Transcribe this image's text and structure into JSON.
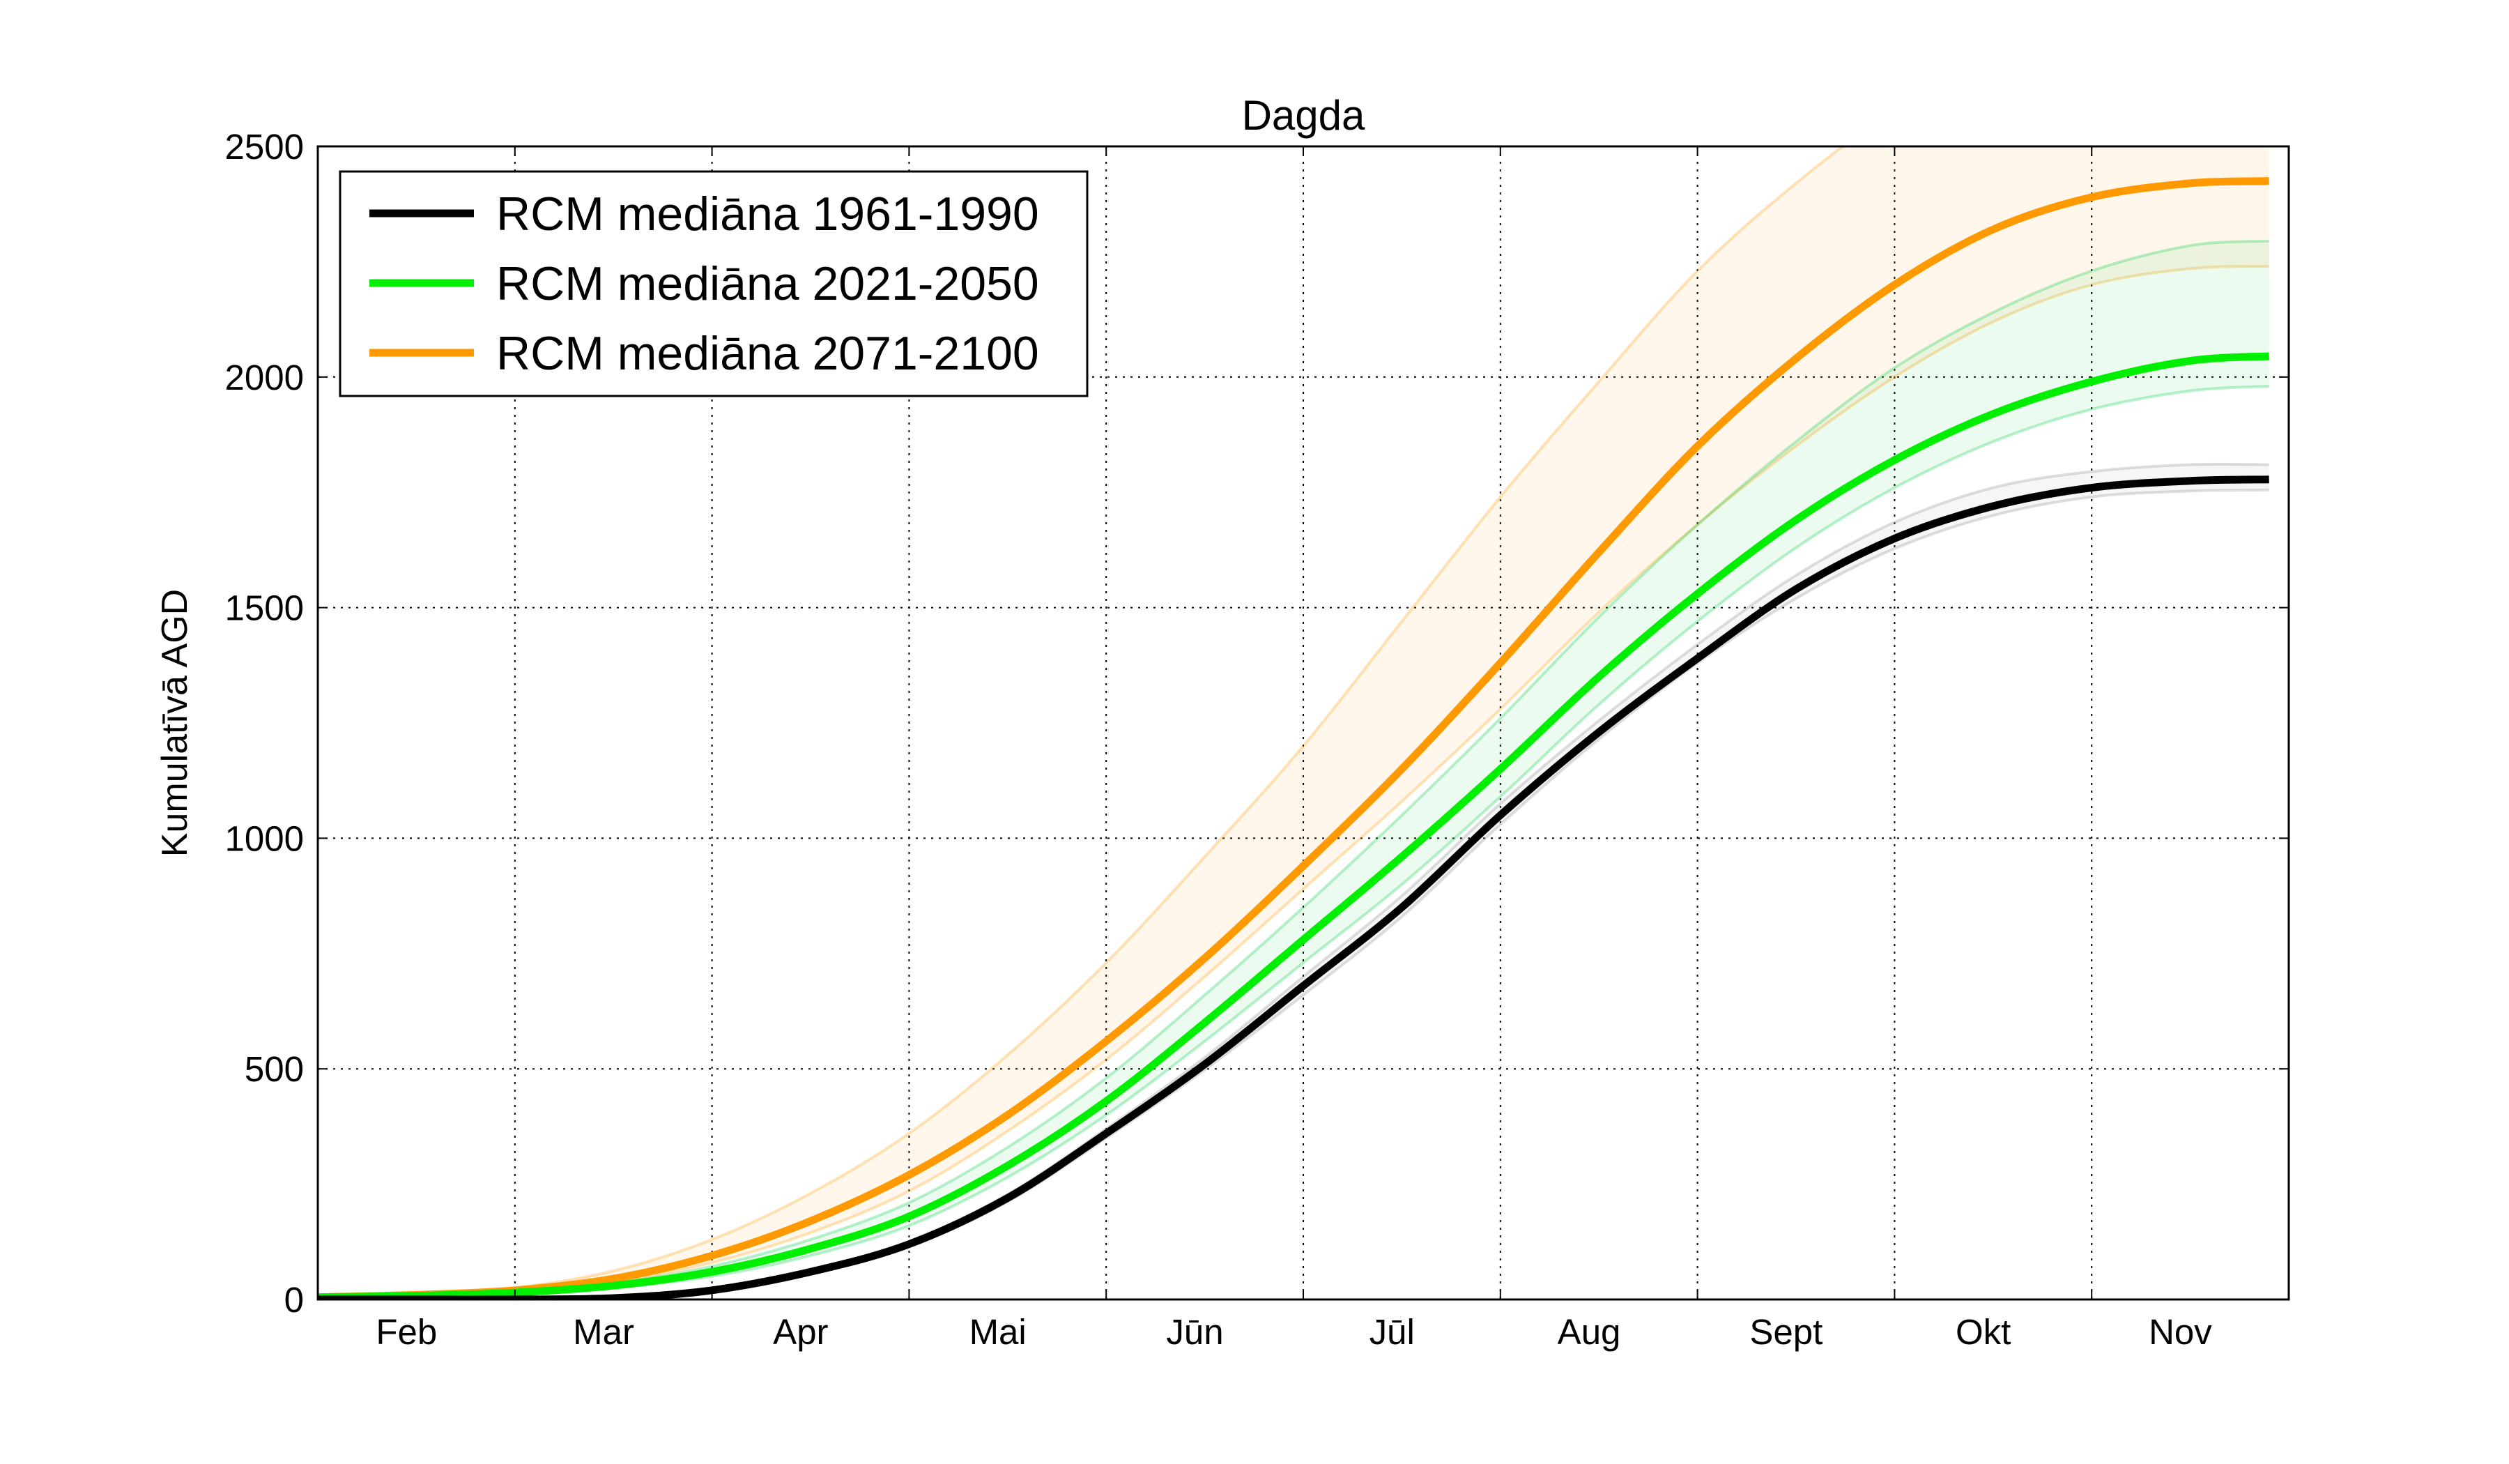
{
  "chart_data": {
    "type": "line",
    "title": "Dagda",
    "xlabel": "",
    "ylabel": "Kumulatīvā AGD",
    "xlim": [
      0,
      10
    ],
    "ylim": [
      0,
      2500
    ],
    "yticks": [
      0,
      500,
      1000,
      1500,
      2000,
      2500
    ],
    "categories": [
      "Feb",
      "Mar",
      "Apr",
      "Mai",
      "Jūn",
      "Jūl",
      "Aug",
      "Sept",
      "Okt",
      "Nov"
    ],
    "grid": true,
    "legend_position": "top-left",
    "x": [
      0,
      0.5,
      1,
      1.5,
      2,
      2.5,
      3,
      3.5,
      4,
      4.5,
      5,
      5.5,
      6,
      6.5,
      7,
      7.5,
      8,
      8.5,
      9,
      9.5,
      9.9
    ],
    "series": [
      {
        "name": "RCM mediāna 1961-1990",
        "color": "#000000",
        "values": [
          0,
          0,
          0,
          3,
          20,
          60,
          120,
          220,
          360,
          510,
          680,
          850,
          1050,
          1230,
          1390,
          1540,
          1650,
          1720,
          1760,
          1775,
          1778
        ],
        "band_upper": [
          0,
          0,
          0,
          4,
          22,
          63,
          125,
          228,
          370,
          525,
          700,
          875,
          1075,
          1255,
          1420,
          1570,
          1685,
          1760,
          1795,
          1810,
          1810
        ],
        "band_lower": [
          0,
          0,
          0,
          2,
          18,
          57,
          115,
          212,
          350,
          498,
          660,
          830,
          1030,
          1215,
          1380,
          1520,
          1628,
          1700,
          1740,
          1753,
          1755
        ],
        "band_color": "#888888"
      },
      {
        "name": "RCM mediāna 2021-2050",
        "color": "#00ee00",
        "values": [
          5,
          8,
          15,
          30,
          60,
          110,
          180,
          290,
          430,
          600,
          780,
          960,
          1150,
          1350,
          1530,
          1690,
          1820,
          1920,
          1990,
          2035,
          2045
        ],
        "band_upper": [
          5,
          9,
          18,
          36,
          72,
          130,
          210,
          330,
          480,
          660,
          850,
          1050,
          1260,
          1480,
          1680,
          1860,
          2020,
          2140,
          2230,
          2285,
          2295
        ],
        "band_lower": [
          5,
          7,
          12,
          25,
          50,
          95,
          160,
          265,
          400,
          560,
          730,
          900,
          1090,
          1290,
          1470,
          1630,
          1760,
          1860,
          1930,
          1970,
          1980
        ],
        "band_color": "#00cc44"
      },
      {
        "name": "RCM mediāna 2071-2100",
        "color": "#ff9900",
        "values": [
          5,
          10,
          20,
          45,
          95,
          170,
          270,
          400,
          560,
          740,
          940,
          1150,
          1380,
          1620,
          1850,
          2040,
          2200,
          2320,
          2390,
          2420,
          2425
        ],
        "band_upper": [
          5,
          11,
          25,
          62,
          130,
          230,
          360,
          530,
          730,
          960,
          1200,
          1470,
          1740,
          1990,
          2230,
          2420,
          2580,
          2700,
          2760,
          2790,
          2795
        ],
        "band_lower": [
          5,
          9,
          18,
          38,
          80,
          145,
          235,
          365,
          520,
          700,
          890,
          1080,
          1280,
          1490,
          1680,
          1850,
          2000,
          2120,
          2200,
          2235,
          2240
        ],
        "band_color": "#ff9900"
      }
    ]
  }
}
